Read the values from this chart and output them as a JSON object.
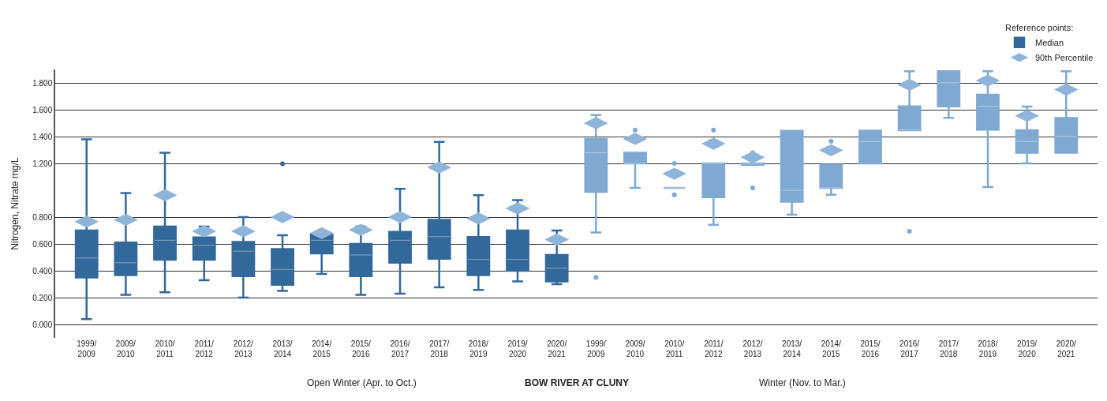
{
  "chart_data": {
    "type": "box",
    "title": "BOW RIVER AT CLUNY",
    "ylabel": "Nitrogen, Nitrate mg/L",
    "legend_title": "Reference points:",
    "annotations": [
      "Open Winter (Apr. to Oct.)",
      "Winter (Nov. to Mar.)"
    ],
    "categories": [
      "1999/2009",
      "2009/2010",
      "2010/2011",
      "2011/2012",
      "2012/2013",
      "2013/2014",
      "2014/2015",
      "2015/2016",
      "2016/2017",
      "2017/2018",
      "2018/2019",
      "2019/2020",
      "2020/2021",
      "1999/2009",
      "2009/2010",
      "2010/2011",
      "2011/2012",
      "2012/2013",
      "2013/2014",
      "2014/2015",
      "2015/2016",
      "2016/2017",
      "2017/2018",
      "2018/2019",
      "2019/2020",
      "2020/2021"
    ],
    "ylim": [
      -0.1,
      1.9
    ],
    "yticks": [
      {
        "value": 0,
        "label": "0.000"
      },
      {
        "value": 0.2,
        "label": "0.200"
      },
      {
        "value": 0.4,
        "label": "0.400"
      },
      {
        "value": 0.6,
        "label": "0.600"
      },
      {
        "value": 0.8,
        "label": "0.800"
      },
      {
        "value": 1.2,
        "label": "1.200"
      },
      {
        "value": 1.4,
        "label": "1.400"
      },
      {
        "value": 1.6,
        "label": "1.600"
      },
      {
        "value": 1.8,
        "label": "1.800"
      }
    ],
    "grid": "y",
    "legend": "top right",
    "series": [
      {
        "name": "Median",
        "type": "box",
        "colors": [
          "#33689a",
          "#33689a",
          "#33689a",
          "#33689a",
          "#33689a",
          "#33689a",
          "#33689a",
          "#33689a",
          "#33689a",
          "#33689a",
          "#33689a",
          "#33689a",
          "#33689a",
          "#7fa9d1",
          "#7fa9d1",
          "#7fa9d1",
          "#7fa9d1",
          "#7fa9d1",
          "#7fa9d1",
          "#7fa9d1",
          "#7fa9d1",
          "#7fa9d1",
          "#7fa9d1",
          "#7fa9d1",
          "#7fa9d1",
          "#7fa9d1"
        ],
        "boxes": [
          {
            "low": 0.04,
            "q1": 0.35,
            "median": 0.495,
            "q3": 0.7,
            "high": 1.38
          },
          {
            "low": 0.22,
            "q1": 0.367,
            "median": 0.46,
            "q3": 0.61,
            "high": 0.98
          },
          {
            "low": 0.24,
            "q1": 0.483,
            "median": 0.627,
            "q3": 0.73,
            "high": 1.28
          },
          {
            "low": 0.33,
            "q1": 0.483,
            "median": 0.59,
            "q3": 0.648,
            "high": 0.73
          },
          {
            "low": 0.2,
            "q1": 0.36,
            "median": 0.546,
            "q3": 0.615,
            "high": 0.8
          },
          {
            "low": 0.25,
            "q1": 0.295,
            "median": 0.41,
            "q3": 0.562,
            "high": 0.664,
            "outliers": [
              1.197
            ]
          },
          {
            "low": 0.376,
            "q1": 0.53,
            "median": 0.627,
            "q3": 0.67,
            "high": 0.69
          },
          {
            "low": 0.22,
            "q1": 0.36,
            "median": 0.518,
            "q3": 0.6,
            "high": 0.73
          },
          {
            "low": 0.23,
            "q1": 0.46,
            "median": 0.627,
            "q3": 0.69,
            "high": 1.01
          },
          {
            "low": 0.276,
            "q1": 0.49,
            "median": 0.655,
            "q3": 0.78,
            "high": 1.36
          },
          {
            "low": 0.258,
            "q1": 0.367,
            "median": 0.485,
            "q3": 0.652,
            "high": 0.963
          },
          {
            "low": 0.32,
            "q1": 0.4,
            "median": 0.485,
            "q3": 0.7,
            "high": 0.926
          },
          {
            "low": 0.3,
            "q1": 0.32,
            "median": 0.42,
            "q3": 0.518,
            "high": 0.7
          },
          {
            "low": 0.685,
            "q1": 0.988,
            "median": 1.279,
            "q3": 1.382,
            "high": 1.561,
            "outliers": [
              0.35
            ]
          },
          {
            "low": 1.018,
            "q1": 1.2,
            "median": 1.2,
            "q3": 1.28,
            "high": 1.28,
            "outliers": [
              1.448
            ]
          },
          {
            "low": 1.018,
            "q1": 1.018,
            "median": 1.018,
            "q3": 1.018,
            "high": 1.018,
            "outliers": [
              1.2,
              0.966
            ]
          },
          {
            "low": 0.742,
            "q1": 0.948,
            "median": 1.2,
            "q3": 1.2,
            "high": 1.2,
            "outliers": [
              1.448
            ]
          },
          {
            "low": 1.19,
            "q1": 1.19,
            "median": 1.2,
            "q3": 1.2,
            "high": 1.2,
            "outliers": [
              1.28,
              1.018
            ]
          },
          {
            "low": 0.818,
            "q1": 0.914,
            "median": 1.0,
            "q3": 1.443,
            "high": 1.443
          },
          {
            "low": 0.966,
            "q1": 1.018,
            "median": 1.018,
            "q3": 1.19,
            "high": 1.19,
            "outliers": [
              1.364
            ]
          },
          {
            "low": 1.2,
            "q1": 1.2,
            "median": 1.363,
            "q3": 1.444,
            "high": 1.444
          },
          {
            "low": 1.447,
            "q1": 1.447,
            "median": 1.45,
            "q3": 1.625,
            "high": 1.887,
            "outliers": [
              0.694
            ]
          },
          {
            "low": 1.539,
            "q1": 1.625,
            "median": 1.8,
            "q3": 1.887,
            "high": 1.887
          },
          {
            "low": 1.023,
            "q1": 1.451,
            "median": 1.625,
            "q3": 1.712,
            "high": 1.887
          },
          {
            "low": 1.2,
            "q1": 1.28,
            "median": 1.363,
            "q3": 1.447,
            "high": 1.623
          },
          {
            "low": 1.28,
            "q1": 1.28,
            "median": 1.4,
            "q3": 1.538,
            "high": 1.887
          }
        ]
      },
      {
        "name": "90th Percentile",
        "type": "scatter",
        "color": "#8fb4d9",
        "values": [
          0.766,
          0.78,
          0.963,
          0.694,
          0.694,
          0.8,
          0.68,
          0.705,
          0.8,
          1.17,
          0.79,
          0.865,
          0.633,
          1.5,
          1.382,
          1.123,
          1.347,
          1.246,
          null,
          1.298,
          null,
          1.786,
          null,
          1.817,
          1.555,
          1.75
        ]
      }
    ]
  }
}
